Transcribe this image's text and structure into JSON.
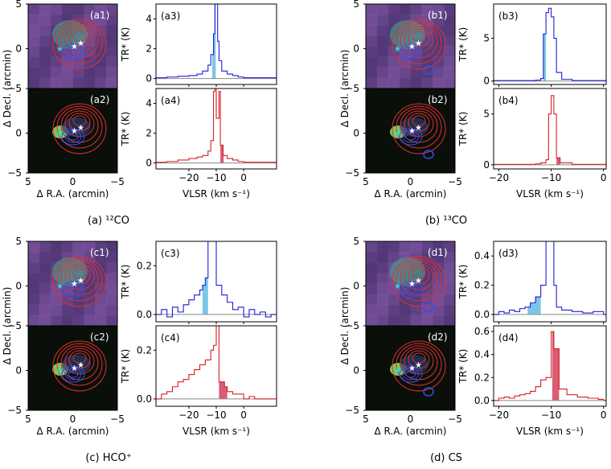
{
  "figure": {
    "panels": [
      {
        "caption": "(a) ¹²CO",
        "image_labels": [
          "(a1)",
          "(a2)"
        ],
        "map": {
          "ylabel": "Δ Decl. (arcmin)",
          "xlabel": "Δ R.A. (arcmin)",
          "xticks": [
            "5",
            "0",
            "−5"
          ],
          "yticks": [
            "5",
            "0",
            "−5"
          ]
        },
        "spectra": [
          {
            "label": "(a3)",
            "color": "#1f1fd6",
            "ylabel": "TR* (K)",
            "yrange": [
              -0.4,
              5
            ],
            "yticks": [
              0,
              2,
              4
            ],
            "fill": "#79c7e8",
            "fill_range": [
              -11.5,
              -10.2
            ],
            "channels": [
              [
                -32,
                0.05
              ],
              [
                -28,
                0.1
              ],
              [
                -24,
                0.15
              ],
              [
                -20,
                0.2
              ],
              [
                -17,
                0.3
              ],
              [
                -15,
                0.5
              ],
              [
                -13,
                0.9
              ],
              [
                -12,
                1.6
              ],
              [
                -11,
                3.0
              ],
              [
                -10.5,
                5.0
              ],
              [
                -10,
                5.0
              ],
              [
                -9.5,
                2.5
              ],
              [
                -9,
                1.2
              ],
              [
                -8,
                0.5
              ],
              [
                -6,
                0.3
              ],
              [
                -4,
                0.2
              ],
              [
                -2,
                0.1
              ],
              [
                0,
                0.05
              ],
              [
                4,
                0.05
              ],
              [
                10,
                0.05
              ]
            ]
          },
          {
            "label": "(a4)",
            "color": "#d62020",
            "ylabel": "TR* (K)",
            "yrange": [
              -0.4,
              5
            ],
            "yticks": [
              0,
              2,
              4
            ],
            "fill": "#d95c75",
            "fill_range": [
              -8.5,
              -7.3
            ],
            "channels": [
              [
                -32,
                0.05
              ],
              [
                -28,
                0.1
              ],
              [
                -24,
                0.2
              ],
              [
                -20,
                0.3
              ],
              [
                -17,
                0.4
              ],
              [
                -15,
                0.5
              ],
              [
                -13,
                0.8
              ],
              [
                -12,
                1.5
              ],
              [
                -11,
                4.8
              ],
              [
                -10.5,
                5.0
              ],
              [
                -10,
                3.0
              ],
              [
                -9,
                4.8
              ],
              [
                -8.5,
                1.2
              ],
              [
                -7.5,
                0.5
              ],
              [
                -6,
                0.3
              ],
              [
                -4,
                0.2
              ],
              [
                -2,
                0.1
              ],
              [
                0,
                0.05
              ],
              [
                4,
                0.05
              ],
              [
                10,
                0.05
              ]
            ]
          }
        ],
        "spec_xlabel": "VLSR (km s⁻¹)",
        "spec_xrange": [
          -32,
          12
        ],
        "spec_xticks": [
          -20,
          -10,
          0
        ]
      },
      {
        "caption": "(b) ¹³CO",
        "image_labels": [
          "(b1)",
          "(b2)"
        ],
        "map": {
          "ylabel": "Δ Decl. (arcmin)",
          "xlabel": "Δ R.A. (arcmin)",
          "xticks": [
            "5",
            "0",
            "−5"
          ],
          "yticks": [
            "5",
            "0",
            "−5"
          ]
        },
        "spectra": [
          {
            "label": "(b3)",
            "color": "#1f1fd6",
            "ylabel": "TR* (K)",
            "yrange": [
              -0.4,
              9
            ],
            "yticks": [
              0,
              5
            ],
            "fill": "#79c7e8",
            "fill_range": [
              -11.5,
              -11.0
            ],
            "channels": [
              [
                -21,
                0.05
              ],
              [
                -15,
                0.05
              ],
              [
                -13,
                0.1
              ],
              [
                -12,
                0.3
              ],
              [
                -11.5,
                5.5
              ],
              [
                -11,
                8.0
              ],
              [
                -10.5,
                8.5
              ],
              [
                -10,
                7.5
              ],
              [
                -9.5,
                5.0
              ],
              [
                -9,
                1.0
              ],
              [
                -8,
                0.2
              ],
              [
                -6,
                0.05
              ],
              [
                0,
                0.05
              ]
            ]
          },
          {
            "label": "(b4)",
            "color": "#d62020",
            "ylabel": "TR* (K)",
            "yrange": [
              -0.4,
              7.5
            ],
            "yticks": [
              0,
              5
            ],
            "fill": "#d95c75",
            "fill_range": [
              -9.0,
              -8.3
            ],
            "channels": [
              [
                -21,
                0.05
              ],
              [
                -15,
                0.05
              ],
              [
                -13,
                0.1
              ],
              [
                -12,
                0.2
              ],
              [
                -11,
                0.5
              ],
              [
                -10.5,
                5.0
              ],
              [
                -10,
                6.8
              ],
              [
                -9.5,
                5.0
              ],
              [
                -9,
                0.7
              ],
              [
                -8.3,
                0.2
              ],
              [
                -6,
                0.05
              ],
              [
                0,
                0.05
              ]
            ]
          }
        ],
        "spec_xlabel": "VLSR (km s⁻¹)",
        "spec_xrange": [
          -21,
          0.5
        ],
        "spec_xticks": [
          -20,
          -10,
          0
        ]
      },
      {
        "caption": "(c) HCO⁺",
        "image_labels": [
          "(c1)",
          "(c2)"
        ],
        "map": {
          "ylabel": "Δ Decl. (arcmin)",
          "xlabel": "Δ R.A. (arcmin)",
          "xticks": [
            "5",
            "0",
            "−5"
          ],
          "yticks": [
            "5",
            "0",
            "−5"
          ]
        },
        "spectra": [
          {
            "label": "(c3)",
            "color": "#1f1fd6",
            "ylabel": "TR* (K)",
            "yrange": [
              -0.03,
              0.3
            ],
            "yticks": [
              0.0,
              0.2
            ],
            "fill": "#79c7e8",
            "fill_range": [
              -15,
              -13
            ],
            "channels": [
              [
                -32,
                0.0
              ],
              [
                -30,
                0.02
              ],
              [
                -28,
                -0.01
              ],
              [
                -26,
                0.03
              ],
              [
                -24,
                0.01
              ],
              [
                -22,
                0.04
              ],
              [
                -20,
                0.06
              ],
              [
                -18,
                0.08
              ],
              [
                -16,
                0.1
              ],
              [
                -15,
                0.12
              ],
              [
                -14,
                0.15
              ],
              [
                -13,
                0.3
              ],
              [
                -11,
                0.3
              ],
              [
                -10,
                0.12
              ],
              [
                -8,
                0.08
              ],
              [
                -6,
                0.05
              ],
              [
                -4,
                0.02
              ],
              [
                -2,
                0.03
              ],
              [
                0,
                -0.01
              ],
              [
                2,
                0.02
              ],
              [
                4,
                0.0
              ],
              [
                6,
                0.01
              ],
              [
                8,
                -0.01
              ],
              [
                10,
                0.0
              ]
            ]
          },
          {
            "label": "(c4)",
            "color": "#d62020",
            "ylabel": "TR* (K)",
            "yrange": [
              -0.03,
              0.3
            ],
            "yticks": [
              0.0,
              0.2
            ],
            "fill": "#d95c75",
            "fill_range": [
              -9,
              -6
            ],
            "channels": [
              [
                -32,
                0.0
              ],
              [
                -30,
                0.02
              ],
              [
                -28,
                0.03
              ],
              [
                -26,
                0.05
              ],
              [
                -24,
                0.07
              ],
              [
                -22,
                0.08
              ],
              [
                -20,
                0.1
              ],
              [
                -18,
                0.12
              ],
              [
                -16,
                0.14
              ],
              [
                -14,
                0.16
              ],
              [
                -12,
                0.2
              ],
              [
                -11,
                0.22
              ],
              [
                -10,
                0.3
              ],
              [
                -9,
                0.07
              ],
              [
                -7,
                0.05
              ],
              [
                -6,
                0.03
              ],
              [
                -4,
                0.02
              ],
              [
                -2,
                0.02
              ],
              [
                0,
                0.0
              ],
              [
                2,
                0.01
              ],
              [
                4,
                0.0
              ],
              [
                10,
                0.0
              ]
            ]
          }
        ],
        "spec_xlabel": "VLSR (km s⁻¹)",
        "spec_xrange": [
          -32,
          12
        ],
        "spec_xticks": [
          -20,
          -10,
          0
        ]
      },
      {
        "caption": "(d) CS",
        "image_labels": [
          "(d1)",
          "(d2)"
        ],
        "map": {
          "ylabel": "Δ Decl. (arcmin)",
          "xlabel": "Δ R.A. (arcmin)",
          "xticks": [
            "5",
            "0",
            "−5"
          ],
          "yticks": [
            "5",
            "0",
            "−5"
          ]
        },
        "spectra": [
          {
            "label": "(d3)",
            "color": "#1f1fd6",
            "ylabel": "TR* (K)",
            "yrange": [
              -0.05,
              0.5
            ],
            "yticks": [
              0.0,
              0.2,
              0.4
            ],
            "fill": "#79c7e8",
            "fill_range": [
              -14.5,
              -12
            ],
            "channels": [
              [
                -21,
                0.0
              ],
              [
                -20,
                0.02
              ],
              [
                -19,
                0.01
              ],
              [
                -18,
                0.03
              ],
              [
                -17,
                0.02
              ],
              [
                -16,
                0.04
              ],
              [
                -15,
                0.05
              ],
              [
                -14,
                0.08
              ],
              [
                -13,
                0.12
              ],
              [
                -12,
                0.2
              ],
              [
                -11,
                0.5
              ],
              [
                -10,
                0.5
              ],
              [
                -9.5,
                0.2
              ],
              [
                -9,
                0.05
              ],
              [
                -8,
                0.03
              ],
              [
                -6,
                0.02
              ],
              [
                -4,
                0.01
              ],
              [
                -2,
                0.02
              ],
              [
                0,
                0.0
              ]
            ]
          },
          {
            "label": "(d4)",
            "color": "#d62020",
            "ylabel": "TR* (K)",
            "yrange": [
              -0.05,
              0.65
            ],
            "yticks": [
              0.0,
              0.2,
              0.4,
              0.6
            ],
            "fill": "#d95c75",
            "fill_range": [
              -9.8,
              -8.5
            ],
            "channels": [
              [
                -21,
                0.0
              ],
              [
                -20,
                0.02
              ],
              [
                -19,
                0.03
              ],
              [
                -18,
                0.02
              ],
              [
                -17,
                0.04
              ],
              [
                -16,
                0.05
              ],
              [
                -15,
                0.06
              ],
              [
                -14,
                0.08
              ],
              [
                -13,
                0.12
              ],
              [
                -12,
                0.18
              ],
              [
                -11,
                0.2
              ],
              [
                -10,
                0.6
              ],
              [
                -9.5,
                0.45
              ],
              [
                -8.5,
                0.1
              ],
              [
                -7,
                0.05
              ],
              [
                -5,
                0.03
              ],
              [
                -3,
                0.02
              ],
              [
                -1,
                0.01
              ],
              [
                0,
                0.0
              ]
            ]
          }
        ],
        "spec_xlabel": "VLSR (km s⁻¹)",
        "spec_xrange": [
          -21,
          0.5
        ],
        "spec_xticks": [
          -20,
          -10,
          0
        ]
      }
    ]
  }
}
